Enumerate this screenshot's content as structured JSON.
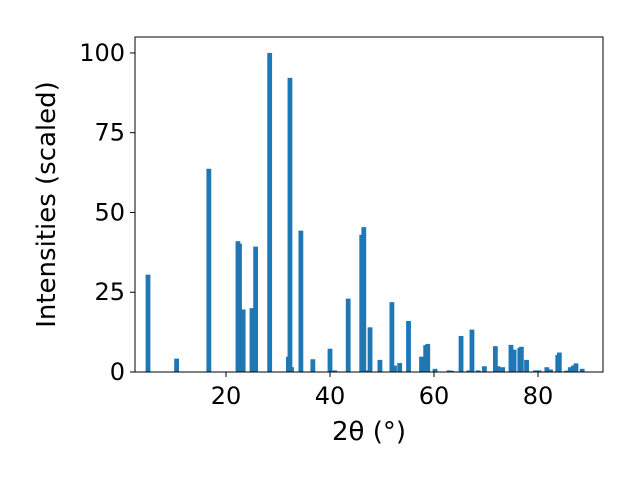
{
  "chart_data": {
    "type": "bar",
    "title": "",
    "xlabel": "2θ (°)",
    "ylabel": "Intensities (scaled)",
    "xlim": [
      2.5,
      92.5
    ],
    "ylim": [
      0,
      105
    ],
    "x_ticks": [
      20,
      40,
      60,
      80
    ],
    "y_ticks": [
      0,
      25,
      50,
      75,
      100
    ],
    "grid": false,
    "bar_color": "#1f77b4",
    "series": [
      {
        "x": [
          5.0,
          10.5,
          16.7,
          22.3,
          22.6,
          23.3,
          25.0,
          25.7,
          28.4,
          32.0,
          32.3,
          32.6,
          34.4,
          36.7,
          40.0,
          40.9,
          43.5,
          46.1,
          46.5,
          47.0,
          47.7,
          49.6,
          51.9,
          52.4,
          53.4,
          55.1,
          57.6,
          58.4,
          58.8,
          60.2,
          62.9,
          63.4,
          65.2,
          66.7,
          67.3,
          68.5,
          69.7,
          71.8,
          72.3,
          73.2,
          74.8,
          75.4,
          76.5,
          76.8,
          77.8,
          79.5,
          80.2,
          81.7,
          82.4,
          83.8,
          84.1,
          85.5,
          86.2,
          86.8,
          87.3,
          88.5
        ],
        "values": [
          30.5,
          4.2,
          63.7,
          41.0,
          40.2,
          19.6,
          20.0,
          39.3,
          100.0,
          4.8,
          92.2,
          1.5,
          44.3,
          4.0,
          7.3,
          0.5,
          23.0,
          43.0,
          45.4,
          0.5,
          14.0,
          3.8,
          21.9,
          2.0,
          2.8,
          16.0,
          4.8,
          8.4,
          8.8,
          1.0,
          0.5,
          0.4,
          11.3,
          0.5,
          13.3,
          0.5,
          1.8,
          8.1,
          1.8,
          1.5,
          8.5,
          7.0,
          7.5,
          7.9,
          3.8,
          0.5,
          0.5,
          1.5,
          0.8,
          5.3,
          6.1,
          0.4,
          1.5,
          2.0,
          2.7,
          1.0
        ]
      }
    ]
  }
}
